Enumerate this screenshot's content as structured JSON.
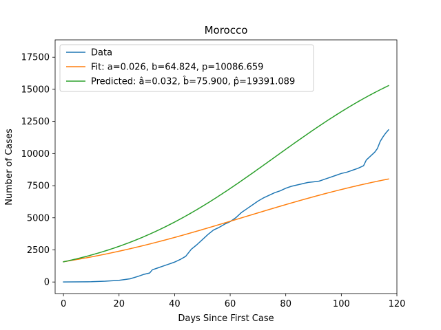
{
  "chart_data": {
    "type": "line",
    "title": "Morocco",
    "xlabel": "Days Since First Case",
    "ylabel": "Number of Cases",
    "xlim": [
      -3,
      120
    ],
    "ylim": [
      -900,
      18850
    ],
    "xticks": [
      0,
      20,
      40,
      60,
      80,
      100,
      120
    ],
    "yticks": [
      0,
      2500,
      5000,
      7500,
      10000,
      12500,
      15000,
      17500
    ],
    "grid": false,
    "legend_position": "top-left",
    "series": [
      {
        "name": "Data",
        "color": "#1f77b4",
        "x": [
          0,
          10,
          15,
          20,
          24,
          27,
          29,
          31,
          32,
          34,
          36,
          38,
          40,
          42,
          44,
          46,
          48,
          50,
          52,
          54,
          56,
          58,
          60,
          62,
          64,
          66,
          68,
          70,
          72,
          74,
          76,
          78,
          80,
          82,
          84,
          86,
          88,
          90,
          92,
          94,
          96,
          98,
          100,
          102,
          104,
          106,
          108,
          109,
          110,
          112,
          113,
          114,
          115,
          116,
          117
        ],
        "y": [
          1,
          20,
          60,
          130,
          250,
          450,
          600,
          700,
          950,
          1100,
          1250,
          1400,
          1550,
          1750,
          2000,
          2550,
          2900,
          3300,
          3700,
          4050,
          4250,
          4500,
          4700,
          5000,
          5400,
          5700,
          6000,
          6300,
          6550,
          6750,
          6950,
          7100,
          7300,
          7450,
          7550,
          7650,
          7750,
          7800,
          7850,
          8000,
          8150,
          8300,
          8450,
          8550,
          8700,
          8850,
          9050,
          9500,
          9700,
          10100,
          10400,
          10950,
          11300,
          11600,
          11850
        ]
      },
      {
        "name": "Fit: a=0.026, b=64.824, p=10086.659",
        "color": "#ff7f0e",
        "function": "logistic",
        "a": 0.026,
        "b": 64.824,
        "p": 10086.659,
        "x_range": [
          0,
          117
        ]
      },
      {
        "name": "Predicted: â=0.032, b̂=75.900, p̂=19391.089",
        "color": "#2ca02c",
        "function": "logistic",
        "a": 0.032,
        "b": 75.9,
        "p": 19391.089,
        "x_range": [
          0,
          117
        ]
      }
    ]
  }
}
